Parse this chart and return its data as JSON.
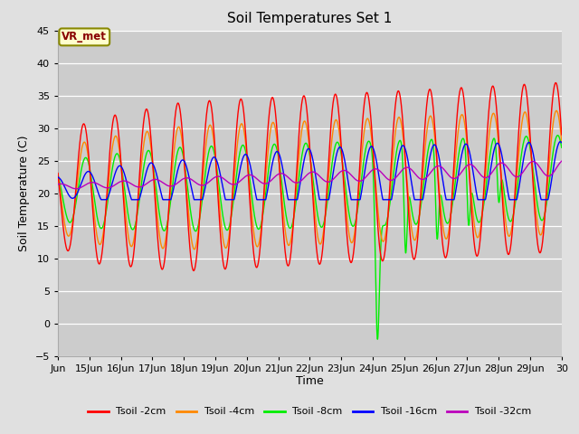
{
  "title": "Soil Temperatures Set 1",
  "xlabel": "Time",
  "ylabel": "Soil Temperature (C)",
  "ylim": [
    -5,
    45
  ],
  "xlim": [
    0,
    384
  ],
  "background_color": "#e0e0e0",
  "plot_bg_color": "#cccccc",
  "x_tick_labels": [
    "Jun",
    "15Jun",
    "16Jun",
    "17Jun",
    "18Jun",
    "19Jun",
    "20Jun",
    "21Jun",
    "22Jun",
    "23Jun",
    "24Jun",
    "25Jun",
    "26Jun",
    "27Jun",
    "28Jun",
    "29Jun",
    "30"
  ],
  "x_tick_positions": [
    0,
    24,
    48,
    72,
    96,
    120,
    144,
    168,
    192,
    216,
    240,
    264,
    288,
    312,
    336,
    360,
    384
  ],
  "legend_labels": [
    "Tsoil -2cm",
    "Tsoil -4cm",
    "Tsoil -8cm",
    "Tsoil -16cm",
    "Tsoil -32cm"
  ],
  "legend_colors": [
    "#ff0000",
    "#ff8800",
    "#00ee00",
    "#0000ff",
    "#bb00bb"
  ],
  "annotation_text": "VR_met",
  "annotation_box_color": "#ffffcc",
  "annotation_border_color": "#888800",
  "annotation_text_color": "#880000"
}
